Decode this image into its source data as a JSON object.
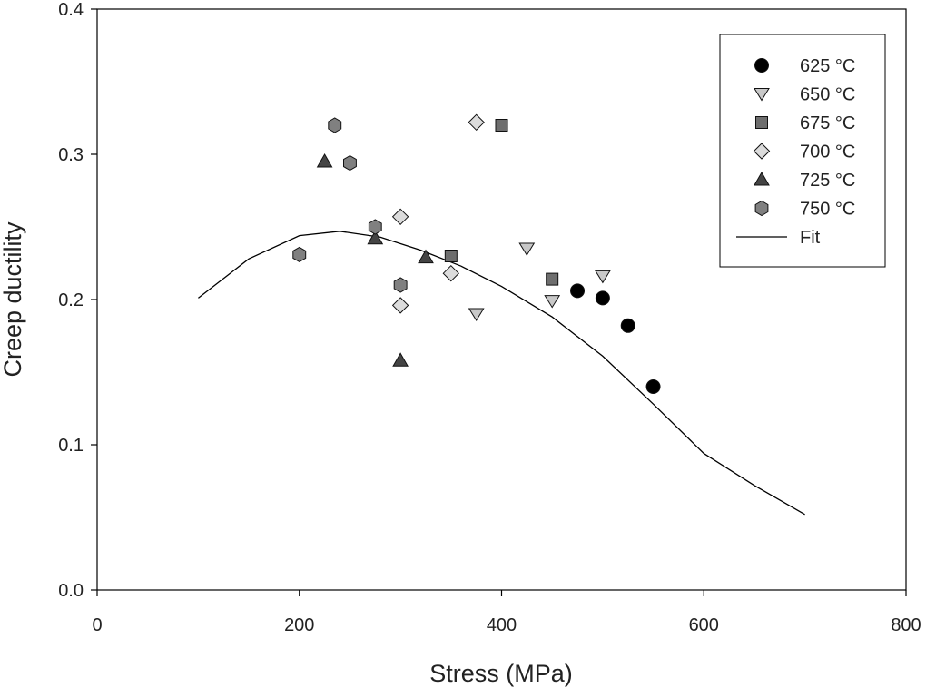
{
  "chart_data": {
    "type": "scatter",
    "title": "",
    "xlabel": "Stress (MPa)",
    "ylabel": "Creep ductility",
    "xlim": [
      0,
      800
    ],
    "ylim": [
      0.0,
      0.4
    ],
    "xticks": [
      0,
      200,
      400,
      600,
      800
    ],
    "xtick_labels": [
      "0",
      "200",
      "400",
      "600",
      "800"
    ],
    "yticks": [
      0.0,
      0.1,
      0.2,
      0.3,
      0.4
    ],
    "ytick_labels": [
      "0.0",
      "0.1",
      "0.2",
      "0.3",
      "0.4"
    ],
    "grid": false,
    "legend_position": "top-right",
    "series": [
      {
        "name": "625 °C",
        "marker": "circle",
        "color": "#000000",
        "x": [
          475,
          500,
          525,
          550
        ],
        "y": [
          0.206,
          0.201,
          0.182,
          0.14
        ]
      },
      {
        "name": "650 °C",
        "marker": "triangle-down",
        "color": "#c8c8c8",
        "x": [
          375,
          425,
          450,
          500
        ],
        "y": [
          0.19,
          0.235,
          0.199,
          0.216
        ]
      },
      {
        "name": "675 °C",
        "marker": "square",
        "color": "#6e6e6e",
        "x": [
          350,
          400,
          450
        ],
        "y": [
          0.23,
          0.32,
          0.214
        ]
      },
      {
        "name": "700 °C",
        "marker": "diamond",
        "color": "#dcdcdc",
        "x": [
          300,
          300,
          350,
          375
        ],
        "y": [
          0.257,
          0.196,
          0.218,
          0.322
        ]
      },
      {
        "name": "725 °C",
        "marker": "triangle-up",
        "color": "#444444",
        "x": [
          225,
          275,
          300,
          325
        ],
        "y": [
          0.295,
          0.242,
          0.158,
          0.229
        ]
      },
      {
        "name": "750 °C",
        "marker": "hexagon",
        "color": "#808080",
        "x": [
          200,
          235,
          250,
          275,
          300
        ],
        "y": [
          0.231,
          0.32,
          0.294,
          0.25,
          0.21
        ]
      }
    ],
    "fit": {
      "name": "Fit",
      "x": [
        100,
        150,
        200,
        240,
        280,
        320,
        360,
        400,
        450,
        500,
        550,
        600,
        650,
        700
      ],
      "y": [
        0.201,
        0.228,
        0.244,
        0.247,
        0.243,
        0.234,
        0.223,
        0.209,
        0.188,
        0.161,
        0.128,
        0.094,
        0.072,
        0.052
      ]
    }
  }
}
